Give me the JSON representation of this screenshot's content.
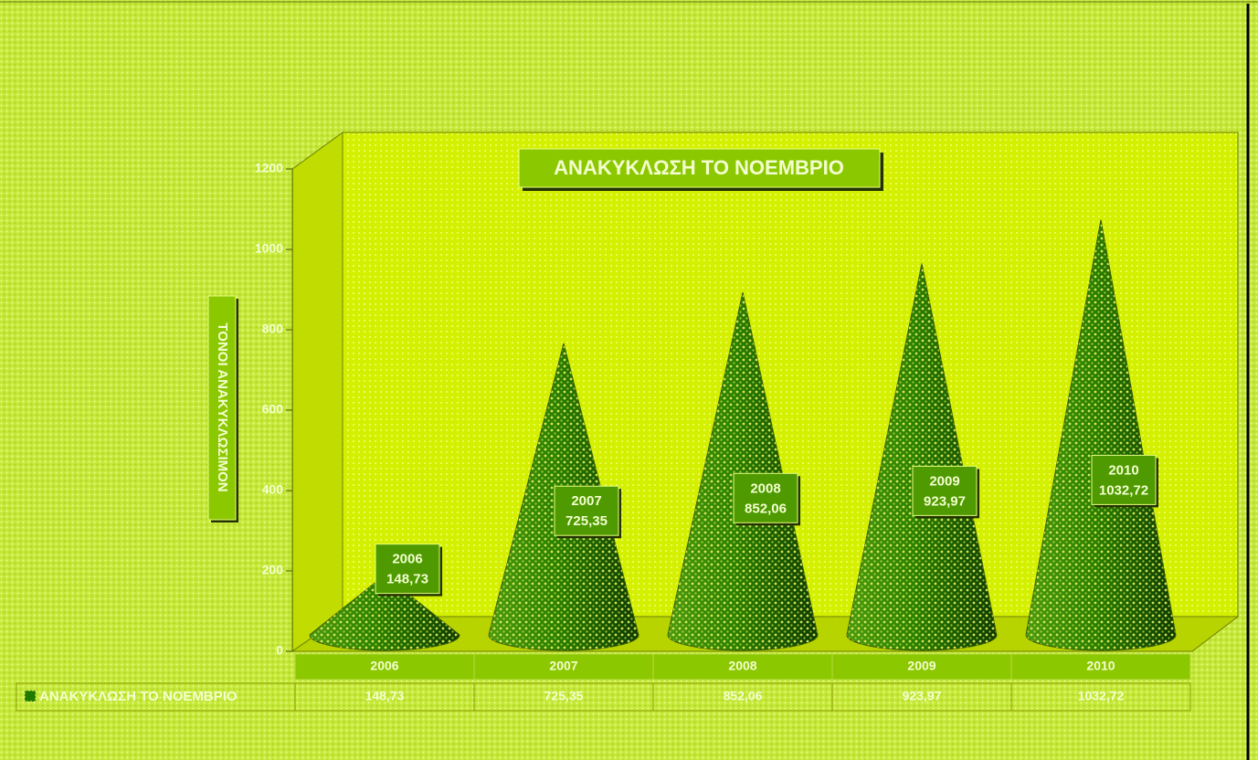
{
  "chart_data": {
    "type": "cone",
    "title": "ΑΝΑΚΥΚΛΩΣΗ ΤΟ ΝΟΕΜΒΡΙΟ",
    "y_label": "ΤΟΝΟΙ ΑΝΑΚΥΚΛΩΣΙΜΟΝ",
    "categories": [
      "2006",
      "2007",
      "2008",
      "2009",
      "2010"
    ],
    "series": [
      {
        "name": "ΑΝΑΚΥΚΛΩΣΗ ΤΟ ΝΟΕΜΒΡΙΟ",
        "color": "#1f7a00",
        "values": [
          148.73,
          725.35,
          852.06,
          923.97,
          1032.72
        ],
        "value_labels": [
          "148,73",
          "725,35",
          "852,06",
          "923,97",
          "1032,72"
        ]
      }
    ],
    "ylim": [
      0,
      1200
    ],
    "yticks": [
      0,
      200,
      400,
      600,
      800,
      1000,
      1200
    ]
  }
}
